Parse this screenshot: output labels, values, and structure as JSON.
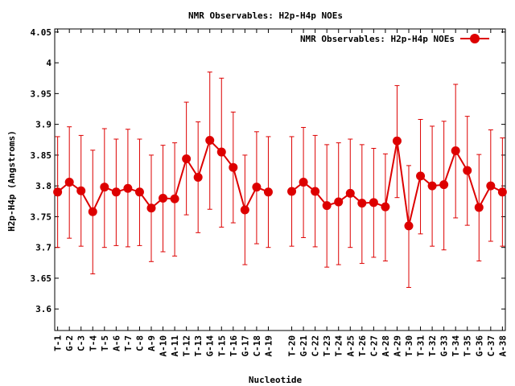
{
  "colors": {
    "series": "#dd0000",
    "axis": "#000000",
    "background": "#ffffff"
  },
  "chart_data": {
    "type": "line",
    "title": "NMR Observables: H2p-H4p NOEs",
    "xlabel": "Nucleotide",
    "ylabel": "H2p-H4p (Angstroms)",
    "ylim": [
      3.565,
      4.055
    ],
    "yticks": [
      3.6,
      3.65,
      3.7,
      3.75,
      3.8,
      3.85,
      3.9,
      3.95,
      4,
      4.05
    ],
    "ytick_labels": [
      "3.6",
      "3.65",
      "3.7",
      "3.75",
      "3.8",
      "3.85",
      "3.9",
      "3.95",
      "4",
      "4.05"
    ],
    "grid": false,
    "legend_position": "top-right",
    "error_bars": true,
    "series": [
      {
        "name": "NMR Observables: H2p-H4p NOEs",
        "segments": [
          [
            {
              "label": "T-1",
              "value": 3.79,
              "low": 3.7,
              "high": 3.88
            },
            {
              "label": "G-2",
              "value": 3.806,
              "low": 3.715,
              "high": 3.896
            },
            {
              "label": "C-3",
              "value": 3.792,
              "low": 3.702,
              "high": 3.882
            },
            {
              "label": "T-4",
              "value": 3.758,
              "low": 3.657,
              "high": 3.858
            },
            {
              "label": "T-5",
              "value": 3.798,
              "low": 3.7,
              "high": 3.893
            },
            {
              "label": "A-6",
              "value": 3.79,
              "low": 3.703,
              "high": 3.876
            },
            {
              "label": "T-7",
              "value": 3.796,
              "low": 3.701,
              "high": 3.892
            },
            {
              "label": "C-8",
              "value": 3.79,
              "low": 3.703,
              "high": 3.876
            },
            {
              "label": "A-9",
              "value": 3.764,
              "low": 3.677,
              "high": 3.85
            },
            {
              "label": "A-10",
              "value": 3.78,
              "low": 3.693,
              "high": 3.866
            },
            {
              "label": "A-11",
              "value": 3.779,
              "low": 3.686,
              "high": 3.87
            },
            {
              "label": "T-12",
              "value": 3.844,
              "low": 3.753,
              "high": 3.936
            },
            {
              "label": "T-13",
              "value": 3.814,
              "low": 3.724,
              "high": 3.904
            },
            {
              "label": "G-14",
              "value": 3.874,
              "low": 3.762,
              "high": 3.985
            },
            {
              "label": "T-15",
              "value": 3.855,
              "low": 3.733,
              "high": 3.975
            },
            {
              "label": "T-16",
              "value": 3.83,
              "low": 3.74,
              "high": 3.92
            },
            {
              "label": "G-17",
              "value": 3.761,
              "low": 3.672,
              "high": 3.85
            },
            {
              "label": "C-18",
              "value": 3.798,
              "low": 3.706,
              "high": 3.888
            },
            {
              "label": "A-19",
              "value": 3.79,
              "low": 3.7,
              "high": 3.88
            }
          ],
          [
            {
              "label": "T-20",
              "value": 3.791,
              "low": 3.702,
              "high": 3.88
            },
            {
              "label": "G-21",
              "value": 3.806,
              "low": 3.716,
              "high": 3.895
            },
            {
              "label": "C-22",
              "value": 3.791,
              "low": 3.701,
              "high": 3.882
            },
            {
              "label": "T-23",
              "value": 3.768,
              "low": 3.668,
              "high": 3.867
            },
            {
              "label": "T-24",
              "value": 3.774,
              "low": 3.672,
              "high": 3.87
            },
            {
              "label": "A-25",
              "value": 3.788,
              "low": 3.7,
              "high": 3.876
            },
            {
              "label": "T-26",
              "value": 3.772,
              "low": 3.674,
              "high": 3.867
            },
            {
              "label": "C-27",
              "value": 3.773,
              "low": 3.684,
              "high": 3.861
            },
            {
              "label": "A-28",
              "value": 3.766,
              "low": 3.678,
              "high": 3.852
            },
            {
              "label": "A-29",
              "value": 3.873,
              "low": 3.781,
              "high": 3.963
            },
            {
              "label": "T-30",
              "value": 3.735,
              "low": 3.635,
              "high": 3.833
            },
            {
              "label": "T-31",
              "value": 3.816,
              "low": 3.722,
              "high": 3.908
            },
            {
              "label": "T-32",
              "value": 3.8,
              "low": 3.702,
              "high": 3.897
            },
            {
              "label": "G-33",
              "value": 3.802,
              "low": 3.696,
              "high": 3.905
            },
            {
              "label": "T-34",
              "value": 3.857,
              "low": 3.748,
              "high": 3.965
            },
            {
              "label": "T-35",
              "value": 3.825,
              "low": 3.736,
              "high": 3.913
            },
            {
              "label": "G-36",
              "value": 3.765,
              "low": 3.678,
              "high": 3.851
            },
            {
              "label": "C-37",
              "value": 3.8,
              "low": 3.71,
              "high": 3.891
            },
            {
              "label": "A-38",
              "value": 3.79,
              "low": 3.702,
              "high": 3.878
            }
          ]
        ]
      }
    ]
  }
}
